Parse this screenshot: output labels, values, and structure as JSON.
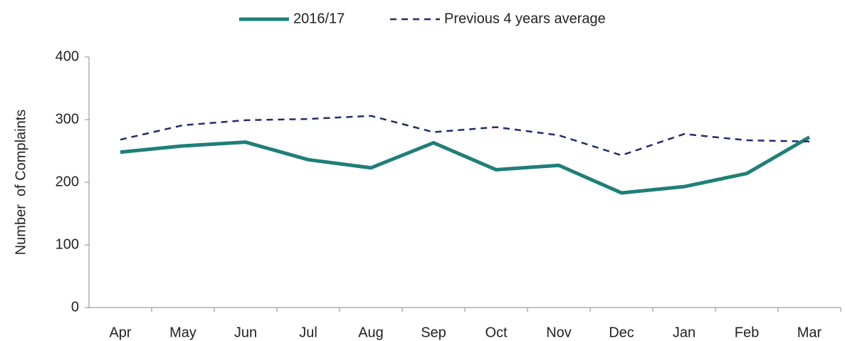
{
  "chart_data": {
    "type": "line",
    "y_label": "Number  of Complaints",
    "categories": [
      "Apr",
      "May",
      "Jun",
      "Jul",
      "Aug",
      "Sep",
      "Oct",
      "Nov",
      "Dec",
      "Jan",
      "Feb",
      "Mar"
    ],
    "series": [
      {
        "name": "2016/17",
        "color": "#1f7f78",
        "line_style": "solid",
        "values": [
          248,
          258,
          264,
          236,
          223,
          263,
          220,
          227,
          183,
          193,
          214,
          272
        ]
      },
      {
        "name": "Previous 4 years average",
        "color": "#1f2d6b",
        "line_style": "dashed",
        "values": [
          268,
          291,
          299,
          301,
          306,
          280,
          288,
          275,
          243,
          277,
          267,
          265
        ]
      }
    ],
    "ylim": [
      0,
      400
    ],
    "yticks": [
      0,
      100,
      200,
      300,
      400
    ],
    "grid": false,
    "legend": "top"
  }
}
